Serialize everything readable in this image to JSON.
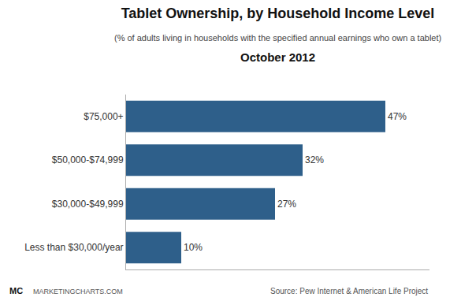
{
  "chart_data": {
    "type": "bar",
    "orientation": "horizontal",
    "title": "Tablet Ownership, by Household Income Level",
    "subtitle": "(% of adults living in households with the specified annual earnings who own a tablet)",
    "annotations": [
      "October 2012",
      "Source: Pew Internet & American Life Project",
      "MC",
      "MARKETINGCHARTS.COM"
    ],
    "categories": [
      "Less than $30,000/year",
      "$30,000-$49,999",
      "$50,000-$74,999",
      "$75,000+"
    ],
    "values": [
      10,
      27,
      32,
      47
    ],
    "value_labels": [
      "10%",
      "27%",
      "32%",
      "47%"
    ],
    "data_labels": true,
    "color": "#2e5f8a",
    "xlim": [
      0,
      55
    ],
    "grid": false,
    "tick_labels": "y"
  }
}
